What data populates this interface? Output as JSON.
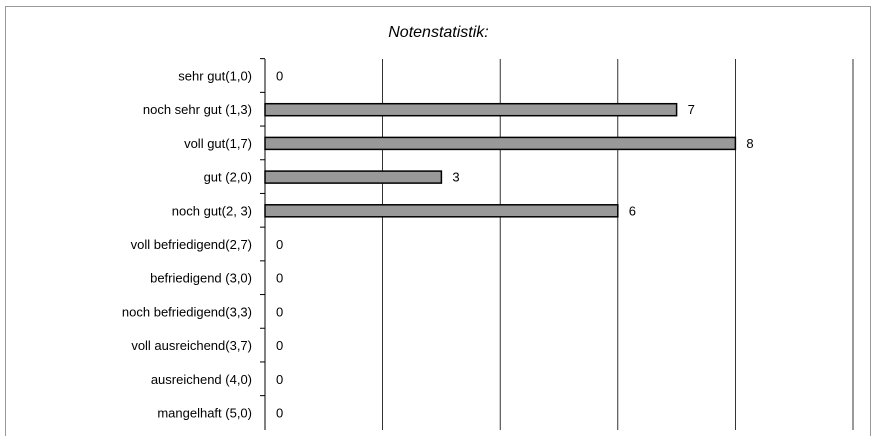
{
  "chart_data": {
    "type": "bar",
    "orientation": "horizontal",
    "title": "Notenstatistik:",
    "categories": [
      "sehr gut(1,0)",
      "noch sehr gut (1,3)",
      "voll gut(1,7)",
      "gut (2,0)",
      "noch gut(2, 3)",
      "voll befriedigend(2,7)",
      "befriedigend (3,0)",
      "noch befriedigend(3,3)",
      "voll ausreichend(3,7)",
      "ausreichend (4,0)",
      "mangelhaft (5,0)"
    ],
    "values": [
      0,
      7,
      8,
      3,
      6,
      0,
      0,
      0,
      0,
      0,
      0
    ],
    "value_labels": [
      "0",
      "7",
      "8",
      "3",
      "6",
      "0",
      "0",
      "0",
      "0",
      "0",
      "0"
    ],
    "xlim": [
      0,
      10
    ],
    "x_gridlines": [
      2,
      4,
      6,
      8,
      10
    ],
    "x_tick_labels_shown": false,
    "grid": true,
    "legend": "none",
    "bar_color": "#999999",
    "bar_edge_color": "#000000"
  }
}
